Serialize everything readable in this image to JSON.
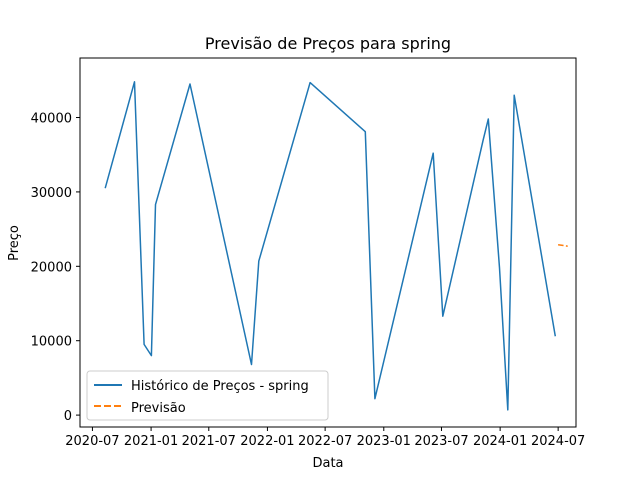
{
  "chart_data": {
    "type": "line",
    "title": "Previsão de Preços para spring",
    "xlabel": "Data",
    "ylabel": "Preço",
    "xlim": [
      "2020-05-23",
      "2024-08-26"
    ],
    "ylim": [
      -1600,
      48000
    ],
    "x_ticks": [
      "2020-07-01",
      "2021-01-01",
      "2021-07-01",
      "2022-01-01",
      "2022-07-01",
      "2023-01-01",
      "2023-07-01",
      "2024-01-01",
      "2024-07-01"
    ],
    "x_tick_labels": [
      "2020-07",
      "2021-01",
      "2021-07",
      "2022-01",
      "2022-07",
      "2023-01",
      "2023-07",
      "2024-01",
      "2024-07"
    ],
    "y_ticks": [
      0,
      10000,
      20000,
      30000,
      40000
    ],
    "y_tick_labels": [
      "0",
      "10000",
      "20000",
      "30000",
      "40000"
    ],
    "grid": false,
    "legend_position": "lower-left",
    "series": [
      {
        "name": "Histórico de Preços - spring",
        "color": "#1f77b4",
        "style": "solid",
        "x": [
          "2020-08-10",
          "2020-11-10",
          "2020-12-10",
          "2021-01-02",
          "2021-01-15",
          "2021-05-03",
          "2021-11-12",
          "2021-12-05",
          "2022-05-15",
          "2022-11-04",
          "2022-12-04",
          "2023-06-05",
          "2023-07-05",
          "2023-11-09",
          "2023-11-25",
          "2023-12-30",
          "2024-01-25",
          "2024-02-14",
          "2024-06-22"
        ],
        "y": [
          30500,
          44800,
          9500,
          8000,
          28300,
          44500,
          6800,
          20700,
          44700,
          38100,
          2200,
          35200,
          13300,
          37000,
          39800,
          19800,
          700,
          43000,
          10600
        ]
      },
      {
        "name": "Previsão",
        "color": "#ff7f0e",
        "style": "dashed",
        "x": [
          "2024-07-01",
          "2024-07-31"
        ],
        "y": [
          22900,
          22700
        ]
      }
    ]
  }
}
